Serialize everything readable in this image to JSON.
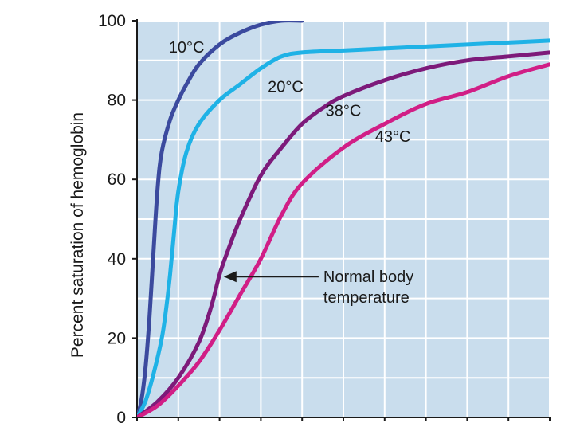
{
  "chart_data": {
    "type": "line",
    "title": "",
    "xlabel": "",
    "ylabel": "Percent saturation of hemoglobin",
    "ylim": [
      0,
      100
    ],
    "yticks": [
      "0",
      "20",
      "40",
      "60",
      "80",
      "100"
    ],
    "xlim": [
      0,
      100
    ],
    "x_gridlines": 10,
    "grid": true,
    "plot_background": "#c9dded",
    "grid_color": "#ffffff",
    "series": [
      {
        "name": "10°C",
        "color": "#3b4a9e",
        "x": [
          0,
          1,
          2,
          3,
          4,
          5,
          6,
          8,
          10,
          12,
          15,
          20,
          25,
          30,
          35,
          40
        ],
        "y": [
          0,
          4,
          12,
          25,
          42,
          58,
          67,
          75,
          80,
          84,
          89,
          94,
          97,
          99,
          100,
          100
        ]
      },
      {
        "name": "20°C",
        "color": "#1fb2e6",
        "x": [
          0,
          2,
          4,
          6,
          7,
          8,
          9,
          10,
          12,
          15,
          20,
          25,
          30,
          35,
          40,
          50,
          60,
          70,
          80,
          90,
          100
        ],
        "y": [
          0,
          4,
          11,
          20,
          27,
          36,
          47,
          57,
          67,
          74,
          80,
          84,
          88,
          91,
          92,
          92.5,
          93,
          93.5,
          94,
          94.5,
          95
        ]
      },
      {
        "name": "38°C",
        "color": "#7d1a7a",
        "x": [
          0,
          5,
          10,
          15,
          18,
          20,
          22,
          25,
          30,
          35,
          40,
          45,
          50,
          60,
          70,
          80,
          90,
          100
        ],
        "y": [
          0,
          4,
          10,
          19,
          28,
          36,
          42,
          50,
          61,
          68,
          74,
          78,
          81,
          85,
          88,
          90,
          91,
          92
        ]
      },
      {
        "name": "43°C",
        "color": "#d11e86",
        "x": [
          0,
          5,
          10,
          15,
          20,
          25,
          30,
          35,
          40,
          50,
          60,
          70,
          80,
          90,
          100
        ],
        "y": [
          0,
          3,
          8,
          14,
          22,
          31,
          40,
          51,
          59,
          68,
          74,
          79,
          82,
          86,
          89
        ]
      }
    ],
    "annotations": [
      {
        "text_lines": [
          "Normal body",
          "temperature"
        ],
        "points_to_series": "38°C"
      }
    ]
  }
}
